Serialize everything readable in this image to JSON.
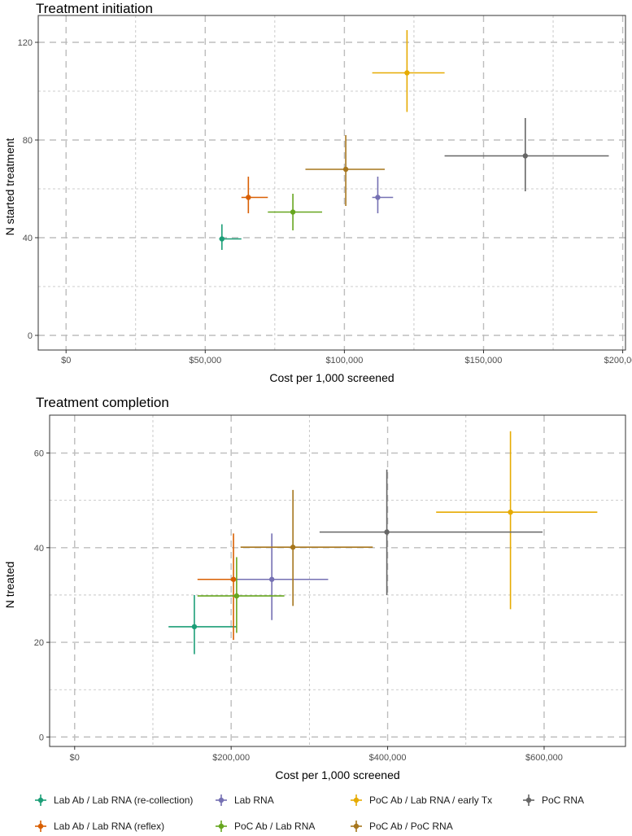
{
  "chart_data": [
    {
      "type": "scatter",
      "title": "Treatment initiation",
      "xlabel": "Cost per 1,000 screened",
      "ylabel": "N started treatment",
      "xlim": [
        -10000,
        201000
      ],
      "ylim": [
        -6,
        131
      ],
      "x_ticks": [
        0,
        50000,
        100000,
        150000,
        200000
      ],
      "x_tick_labels": [
        "$0",
        "$50,000",
        "$100,000",
        "$150,000",
        "$200,000"
      ],
      "y_ticks": [
        0,
        40,
        80,
        120
      ],
      "y_tick_labels": [
        "0",
        "40",
        "80",
        "120"
      ],
      "grid": true,
      "series": [
        {
          "name": "Lab Ab / Lab RNA (re-collection)",
          "x": 56000,
          "x_low": 55000,
          "x_high": 63000,
          "y": 39.5,
          "y_low": 35,
          "y_high": 45.5
        },
        {
          "name": "Lab Ab / Lab RNA (reflex)",
          "x": 65500,
          "x_low": 63000,
          "x_high": 72500,
          "y": 56.5,
          "y_low": 50,
          "y_high": 65
        },
        {
          "name": "Lab RNA",
          "x": 112000,
          "x_low": 110000,
          "x_high": 117500,
          "y": 56.5,
          "y_low": 50,
          "y_high": 65
        },
        {
          "name": "PoC Ab / Lab RNA",
          "x": 81500,
          "x_low": 72500,
          "x_high": 92000,
          "y": 50.5,
          "y_low": 43,
          "y_high": 58
        },
        {
          "name": "PoC Ab / Lab RNA / early Tx",
          "x": 122500,
          "x_low": 110000,
          "x_high": 136000,
          "y": 107.5,
          "y_low": 91.5,
          "y_high": 125
        },
        {
          "name": "PoC Ab / PoC RNA",
          "x": 100500,
          "x_low": 86000,
          "x_high": 114500,
          "y": 68,
          "y_low": 53,
          "y_high": 82
        },
        {
          "name": "PoC RNA",
          "x": 165000,
          "x_low": 136000,
          "x_high": 195000,
          "y": 73.5,
          "y_low": 59,
          "y_high": 89
        }
      ]
    },
    {
      "type": "scatter",
      "title": "Treatment completion",
      "xlabel": "Cost per 1,000 screened",
      "ylabel": "N treated",
      "xlim": [
        -32000,
        704000
      ],
      "ylim": [
        -2,
        68
      ],
      "x_ticks": [
        0,
        200000,
        400000,
        600000
      ],
      "x_tick_labels": [
        "$0",
        "$200,000",
        "$400,000",
        "$600,000"
      ],
      "y_ticks": [
        0,
        20,
        40,
        60
      ],
      "y_tick_labels": [
        "0",
        "20",
        "40",
        "60"
      ],
      "grid": true,
      "series": [
        {
          "name": "Lab Ab / Lab RNA (re-collection)",
          "x": 153000,
          "x_low": 120000,
          "x_high": 207000,
          "y": 23.3,
          "y_low": 17.5,
          "y_high": 30
        },
        {
          "name": "Lab Ab / Lab RNA (reflex)",
          "x": 203000,
          "x_low": 157000,
          "x_high": 207000,
          "y": 33.3,
          "y_low": 20.5,
          "y_high": 43
        },
        {
          "name": "Lab RNA",
          "x": 252000,
          "x_low": 207000,
          "x_high": 324000,
          "y": 33.3,
          "y_low": 24.7,
          "y_high": 43
        },
        {
          "name": "PoC Ab / Lab RNA",
          "x": 207000,
          "x_low": 157000,
          "x_high": 268000,
          "y": 29.8,
          "y_low": 22,
          "y_high": 38
        },
        {
          "name": "PoC Ab / Lab RNA / early Tx",
          "x": 557000,
          "x_low": 462000,
          "x_high": 668000,
          "y": 47.5,
          "y_low": 27,
          "y_high": 64.6
        },
        {
          "name": "PoC Ab / PoC RNA",
          "x": 279000,
          "x_low": 212000,
          "x_high": 381000,
          "y": 40.1,
          "y_low": 27.7,
          "y_high": 52.2
        },
        {
          "name": "PoC RNA",
          "x": 399000,
          "x_low": 313000,
          "x_high": 598000,
          "y": 43.3,
          "y_low": 30,
          "y_high": 56.5
        }
      ]
    }
  ],
  "legend": {
    "placement": "bottom",
    "items": [
      {
        "label": "Lab Ab / Lab RNA (re-collection)",
        "color": "#1b9e77"
      },
      {
        "label": "Lab Ab / Lab RNA (reflex)",
        "color": "#d95f02"
      },
      {
        "label": "Lab RNA",
        "color": "#7570b3"
      },
      {
        "label": "PoC Ab / Lab RNA",
        "color": "#66a61e"
      },
      {
        "label": "PoC Ab / Lab RNA / early Tx",
        "color": "#e6ab02"
      },
      {
        "label": "PoC Ab / PoC RNA",
        "color": "#a6761d"
      },
      {
        "label": "PoC RNA",
        "color": "#666666"
      }
    ]
  },
  "colors": {
    "panel_border": "#333333",
    "grid": "#bdbdbd",
    "tick_text": "#4d4d4d"
  }
}
